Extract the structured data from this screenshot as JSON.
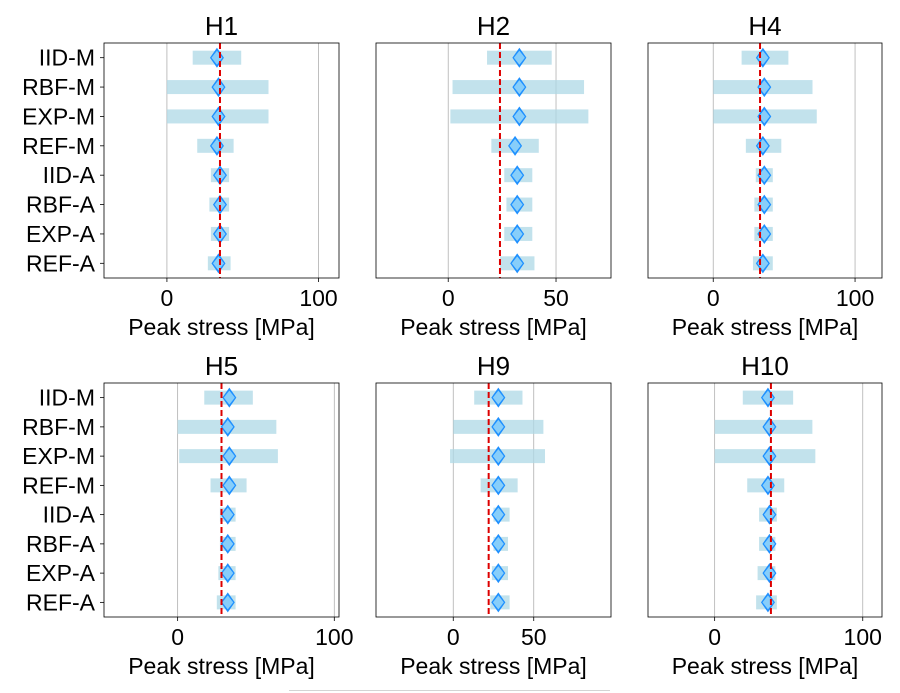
{
  "colors": {
    "bar": "#add8e6",
    "marker": "#1e90ff",
    "marker_light": "#87cefa",
    "reference": "#dd0000",
    "grid": "#b0b0b0",
    "axis": "#000000"
  },
  "chart_data": [
    {
      "type": "bar",
      "title": "H1",
      "xlabel": "Peak stress [MPa]",
      "ylabel": "",
      "xlim": [
        -41.5,
        113.5
      ],
      "xticks": [
        0,
        100
      ],
      "grid": "x",
      "categories": [
        "IID-M",
        "RBF-M",
        "EXP-M",
        "REF-M",
        "IID-A",
        "RBF-A",
        "EXP-A",
        "REF-A"
      ],
      "reference": 35,
      "series": [
        {
          "name": "range",
          "values": [
            [
              17,
              49
            ],
            [
              0,
              67
            ],
            [
              0,
              67
            ],
            [
              20,
              44
            ],
            [
              29,
              41
            ],
            [
              28,
              41
            ],
            [
              29,
              41
            ],
            [
              27,
              42
            ]
          ]
        },
        {
          "name": "point",
          "values": [
            33,
            34,
            34,
            33,
            35,
            35,
            35,
            34
          ]
        }
      ]
    },
    {
      "type": "bar",
      "title": "H2",
      "xlabel": "Peak stress [MPa]",
      "ylabel": "",
      "xlim": [
        -33.5,
        75.5
      ],
      "xticks": [
        0,
        50
      ],
      "grid": "x",
      "categories": [
        "IID-M",
        "RBF-M",
        "EXP-M",
        "REF-M",
        "IID-A",
        "RBF-A",
        "EXP-A",
        "REF-A"
      ],
      "reference": 24,
      "series": [
        {
          "name": "range",
          "values": [
            [
              18,
              48
            ],
            [
              2,
              63
            ],
            [
              1,
              65
            ],
            [
              20,
              42
            ],
            [
              26,
              39
            ],
            [
              27,
              39
            ],
            [
              26,
              39
            ],
            [
              24,
              40
            ]
          ]
        },
        {
          "name": "point",
          "values": [
            33,
            33,
            33,
            31,
            32,
            32,
            32,
            32
          ]
        }
      ]
    },
    {
      "type": "bar",
      "title": "H4",
      "xlabel": "Peak stress [MPa]",
      "ylabel": "",
      "xlim": [
        -46,
        119
      ],
      "xticks": [
        0,
        100
      ],
      "grid": "x",
      "categories": [
        "IID-M",
        "RBF-M",
        "EXP-M",
        "REF-M",
        "IID-A",
        "RBF-A",
        "EXP-A",
        "REF-A"
      ],
      "reference": 33,
      "series": [
        {
          "name": "range",
          "values": [
            [
              20,
              53
            ],
            [
              0,
              70
            ],
            [
              0,
              73
            ],
            [
              23,
              48
            ],
            [
              30,
              42
            ],
            [
              29,
              42
            ],
            [
              29,
              42
            ],
            [
              28,
              42
            ]
          ]
        },
        {
          "name": "point",
          "values": [
            35,
            36,
            36,
            35,
            36,
            36,
            36,
            35
          ]
        }
      ]
    },
    {
      "type": "bar",
      "title": "H5",
      "xlabel": "Peak stress [MPa]",
      "ylabel": "",
      "xlim": [
        -47,
        103
      ],
      "xticks": [
        0,
        100
      ],
      "grid": "x",
      "categories": [
        "IID-M",
        "RBF-M",
        "EXP-M",
        "REF-M",
        "IID-A",
        "RBF-A",
        "EXP-A",
        "REF-A"
      ],
      "reference": 28,
      "series": [
        {
          "name": "range",
          "values": [
            [
              17,
              48
            ],
            [
              0,
              63
            ],
            [
              1,
              64
            ],
            [
              21,
              44
            ],
            [
              27,
              37
            ],
            [
              27,
              37
            ],
            [
              26,
              37
            ],
            [
              25,
              37
            ]
          ]
        },
        {
          "name": "point",
          "values": [
            33,
            32,
            33,
            33,
            32,
            32,
            32,
            32
          ]
        }
      ]
    },
    {
      "type": "bar",
      "title": "H9",
      "xlabel": "Peak stress [MPa]",
      "ylabel": "",
      "xlim": [
        -48,
        98
      ],
      "xticks": [
        0,
        50
      ],
      "grid": "x",
      "categories": [
        "IID-M",
        "RBF-M",
        "EXP-M",
        "REF-M",
        "IID-A",
        "RBF-A",
        "EXP-A",
        "REF-A"
      ],
      "reference": 22,
      "series": [
        {
          "name": "range",
          "values": [
            [
              13,
              43
            ],
            [
              0,
              56
            ],
            [
              -2,
              57
            ],
            [
              17,
              40
            ],
            [
              25,
              35
            ],
            [
              25,
              34
            ],
            [
              24,
              34
            ],
            [
              23,
              35
            ]
          ]
        },
        {
          "name": "point",
          "values": [
            28,
            28,
            28,
            28,
            28,
            28,
            28,
            28
          ]
        }
      ]
    },
    {
      "type": "bar",
      "title": "H10",
      "xlabel": "Peak stress [MPa]",
      "ylabel": "",
      "xlim": [
        -45,
        113
      ],
      "xticks": [
        0,
        100
      ],
      "grid": "x",
      "categories": [
        "IID-M",
        "RBF-M",
        "EXP-M",
        "REF-M",
        "IID-A",
        "RBF-A",
        "EXP-A",
        "REF-A"
      ],
      "reference": 38,
      "series": [
        {
          "name": "range",
          "values": [
            [
              19,
              53
            ],
            [
              0,
              66
            ],
            [
              0,
              68
            ],
            [
              22,
              47
            ],
            [
              30,
              42
            ],
            [
              30,
              41
            ],
            [
              29,
              41
            ],
            [
              28,
              42
            ]
          ]
        },
        {
          "name": "point",
          "values": [
            36,
            37,
            37,
            36,
            37,
            37,
            37,
            36
          ]
        }
      ]
    }
  ]
}
